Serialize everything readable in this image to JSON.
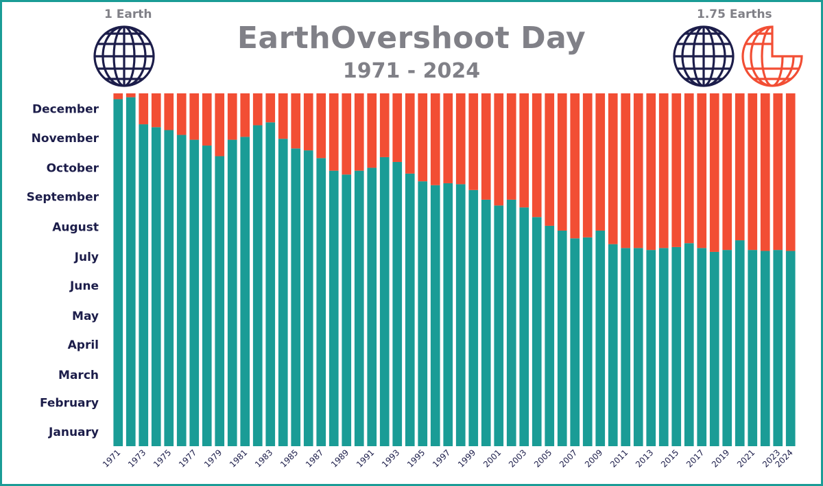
{
  "header": {
    "title": "EarthOvershoot Day",
    "subtitle": "1971 - 2024",
    "left_caption": "1 Earth",
    "right_caption": "1.75 Earths",
    "globe_icon": "globe-icon",
    "partial_globe_icon": "partial-globe-icon"
  },
  "colors": {
    "navy": "#1c1d4a",
    "teal": "#1a9c96",
    "orange": "#f24e34",
    "grey": "#808087"
  },
  "chart_data": {
    "type": "bar",
    "stacked": true,
    "title": "EarthOvershoot Day",
    "subtitle": "1971 - 2024",
    "xlabel": "",
    "ylabel": "",
    "ylim": [
      0,
      365
    ],
    "grid": false,
    "legend": "none",
    "y_ticks": [
      {
        "label": "January",
        "value": 15
      },
      {
        "label": "February",
        "value": 45
      },
      {
        "label": "March",
        "value": 74
      },
      {
        "label": "April",
        "value": 105
      },
      {
        "label": "May",
        "value": 135
      },
      {
        "label": "June",
        "value": 166
      },
      {
        "label": "July",
        "value": 196
      },
      {
        "label": "August",
        "value": 227
      },
      {
        "label": "September",
        "value": 258
      },
      {
        "label": "October",
        "value": 288
      },
      {
        "label": "November",
        "value": 319
      },
      {
        "label": "December",
        "value": 349
      }
    ],
    "x_tick_labels": [
      "1971",
      "1973",
      "1975",
      "1977",
      "1979",
      "1981",
      "1983",
      "1985",
      "1987",
      "1989",
      "1991",
      "1993",
      "1995",
      "1997",
      "1999",
      "2001",
      "2003",
      "2005",
      "2007",
      "2009",
      "2011",
      "2013",
      "2015",
      "2017",
      "2019",
      "2021",
      "2023",
      "2024"
    ],
    "categories": [
      "1971",
      "1972",
      "1973",
      "1974",
      "1975",
      "1976",
      "1977",
      "1978",
      "1979",
      "1980",
      "1981",
      "1982",
      "1983",
      "1984",
      "1985",
      "1986",
      "1987",
      "1988",
      "1989",
      "1990",
      "1991",
      "1992",
      "1993",
      "1994",
      "1995",
      "1996",
      "1997",
      "1998",
      "1999",
      "2000",
      "2001",
      "2002",
      "2003",
      "2004",
      "2005",
      "2006",
      "2007",
      "2008",
      "2009",
      "2010",
      "2011",
      "2012",
      "2013",
      "2014",
      "2015",
      "2016",
      "2017",
      "2018",
      "2019",
      "2020",
      "2021",
      "2022",
      "2023",
      "2024"
    ],
    "series": [
      {
        "color": "#1a9c96",
        "values": [
          359,
          361,
          333,
          330,
          327,
          322,
          317,
          311,
          300,
          317,
          320,
          332,
          335,
          318,
          308,
          306,
          298,
          285,
          281,
          285,
          288,
          299,
          294,
          282,
          274,
          270,
          272,
          271,
          265,
          255,
          249,
          255,
          247,
          237,
          228,
          223,
          215,
          216,
          223,
          209,
          205,
          205,
          203,
          205,
          206,
          210,
          205,
          201,
          203,
          213,
          203,
          202,
          203,
          202
        ]
      },
      {
        "color": "#f24e34",
        "values": [
          6,
          4,
          32,
          35,
          38,
          43,
          48,
          54,
          65,
          48,
          45,
          33,
          30,
          47,
          57,
          59,
          67,
          80,
          84,
          80,
          77,
          66,
          71,
          83,
          91,
          95,
          93,
          94,
          100,
          110,
          116,
          110,
          118,
          128,
          137,
          142,
          150,
          149,
          142,
          156,
          160,
          160,
          162,
          160,
          159,
          155,
          160,
          164,
          162,
          152,
          162,
          163,
          162,
          163
        ]
      }
    ]
  }
}
